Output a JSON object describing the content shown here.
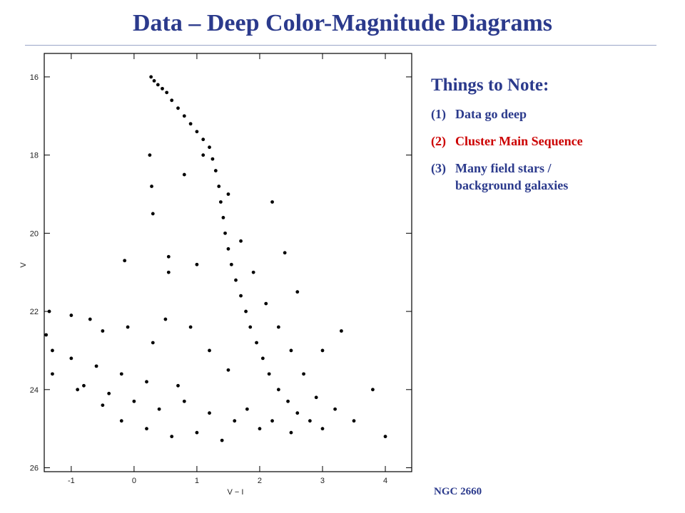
{
  "title": "Data – Deep Color-Magnitude Diagrams",
  "notes": {
    "heading": "Things to Note:",
    "items": [
      {
        "num": "(1)",
        "text": "Data go deep"
      },
      {
        "num": "(2)",
        "text": "Cluster Main Sequence"
      },
      {
        "num": "(3)",
        "text": "Many field stars / background galaxies"
      }
    ]
  },
  "caption": "NGC 2660",
  "chart_data": {
    "type": "scatter",
    "x_label": "V − I",
    "y_label": "V",
    "color": "#000000",
    "y_inverted": true,
    "xlim": [
      -1.43,
      4.42
    ],
    "ylim": [
      15.4,
      26.1
    ],
    "xticks": [
      -1,
      0,
      1,
      2,
      3,
      4
    ],
    "yticks": [
      16,
      18,
      20,
      22,
      24,
      26
    ],
    "x": [
      0.27,
      0.32,
      0.38,
      0.45,
      0.52,
      0.6,
      0.7,
      0.8,
      0.9,
      1.0,
      1.1,
      1.2,
      1.25,
      1.3,
      1.35,
      1.38,
      1.42,
      1.45,
      1.5,
      1.55,
      1.62,
      1.7,
      1.78,
      1.85,
      1.95,
      2.05,
      2.15,
      2.3,
      2.45,
      2.6,
      2.8,
      3.0,
      1.1,
      1.5,
      1.7,
      1.9,
      2.1,
      2.3,
      2.5,
      2.7,
      2.9,
      3.2,
      3.5,
      2.2,
      2.0,
      2.5,
      1.8,
      2.6,
      2.4,
      2.2,
      3.3,
      3.0,
      3.8,
      4.0,
      0.25,
      0.28,
      0.3,
      0.55,
      0.55,
      1.0,
      -0.15,
      0.8,
      -1.35,
      -1.0,
      -0.7,
      -0.5,
      -1.3,
      -1.0,
      -0.6,
      -0.2,
      0.2,
      -1.3,
      -0.8,
      -0.4,
      0.0,
      0.4,
      0.8,
      1.2,
      -0.5,
      -0.2,
      0.2,
      0.6,
      1.0,
      1.4,
      0.5,
      0.9,
      1.2,
      0.3,
      -0.1,
      -1.4,
      1.5,
      0.7,
      -0.9,
      1.6
    ],
    "y": [
      16.0,
      16.1,
      16.2,
      16.3,
      16.4,
      16.6,
      16.8,
      17.0,
      17.2,
      17.4,
      17.6,
      17.8,
      18.1,
      18.4,
      18.8,
      19.2,
      19.6,
      20.0,
      20.4,
      20.8,
      21.2,
      21.6,
      22.0,
      22.4,
      22.8,
      23.2,
      23.6,
      24.0,
      24.3,
      24.6,
      24.8,
      25.0,
      18.0,
      19.0,
      20.2,
      21.0,
      21.8,
      22.4,
      23.0,
      23.6,
      24.2,
      24.5,
      24.8,
      24.8,
      25.0,
      25.1,
      24.5,
      21.5,
      20.5,
      19.2,
      22.5,
      23.0,
      24.0,
      25.2,
      18.0,
      18.8,
      19.5,
      20.6,
      21.0,
      20.8,
      20.7,
      18.5,
      22.0,
      22.1,
      22.2,
      22.5,
      23.0,
      23.2,
      23.4,
      23.6,
      23.8,
      23.6,
      23.9,
      24.1,
      24.3,
      24.5,
      24.3,
      24.6,
      24.4,
      24.8,
      25.0,
      25.2,
      25.1,
      25.3,
      22.2,
      22.4,
      23.0,
      22.8,
      22.4,
      22.6,
      23.5,
      23.9,
      24.0,
      24.8
    ]
  }
}
